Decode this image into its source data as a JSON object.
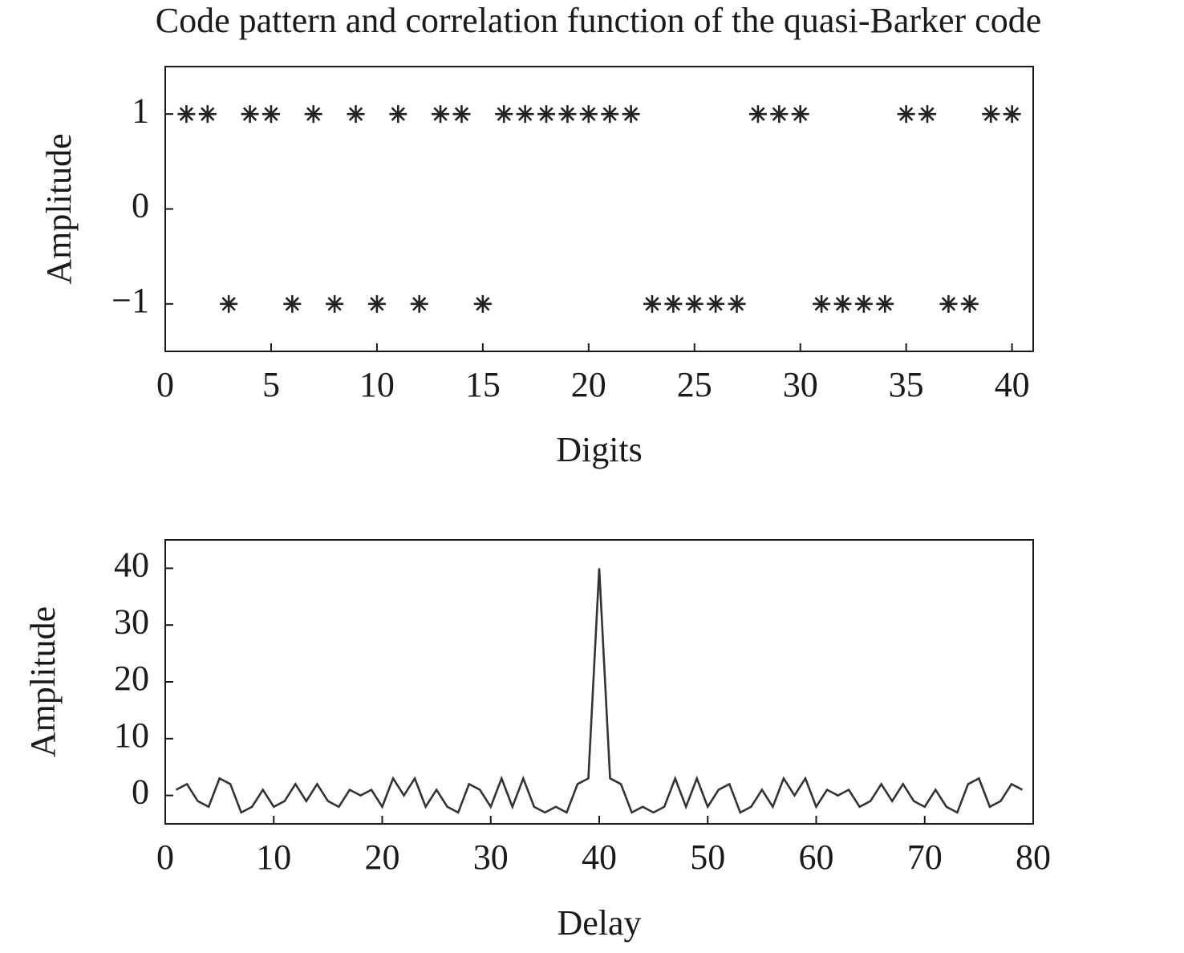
{
  "chart_data": [
    {
      "type": "scatter",
      "title": "Code pattern and correlation function of the quasi-Barker code",
      "xlabel": "Digits",
      "ylabel": "Amplitude",
      "marker": "asterisk",
      "color": "#222222",
      "x": [
        1,
        2,
        3,
        4,
        5,
        6,
        7,
        8,
        9,
        10,
        11,
        12,
        13,
        14,
        15,
        16,
        17,
        18,
        19,
        20,
        21,
        22,
        23,
        24,
        25,
        26,
        27,
        28,
        29,
        30,
        31,
        32,
        33,
        34,
        35,
        36,
        37,
        38,
        39,
        40
      ],
      "values": [
        1,
        1,
        -1,
        1,
        1,
        -1,
        1,
        -1,
        1,
        -1,
        1,
        -1,
        1,
        1,
        -1,
        1,
        1,
        1,
        1,
        1,
        1,
        1,
        -1,
        -1,
        -1,
        -1,
        -1,
        1,
        1,
        1,
        -1,
        -1,
        -1,
        -1,
        1,
        1,
        -1,
        -1,
        1,
        1
      ],
      "xlim": [
        0,
        41
      ],
      "ylim": [
        -1.5,
        1.5
      ],
      "xticks": [
        0,
        5,
        10,
        15,
        20,
        25,
        30,
        35,
        40
      ],
      "yticks": [
        {
          "value": -1,
          "label": "−1"
        },
        0,
        1
      ]
    },
    {
      "type": "line",
      "xlabel": "Delay",
      "ylabel": "Amplitude",
      "color": "#333333",
      "x": [
        1,
        2,
        3,
        4,
        5,
        6,
        7,
        8,
        9,
        10,
        11,
        12,
        13,
        14,
        15,
        16,
        17,
        18,
        19,
        20,
        21,
        22,
        23,
        24,
        25,
        26,
        27,
        28,
        29,
        30,
        31,
        32,
        33,
        34,
        35,
        36,
        37,
        38,
        39,
        40,
        41,
        42,
        43,
        44,
        45,
        46,
        47,
        48,
        49,
        50,
        51,
        52,
        53,
        54,
        55,
        56,
        57,
        58,
        59,
        60,
        61,
        62,
        63,
        64,
        65,
        66,
        67,
        68,
        69,
        70,
        71,
        72,
        73,
        74,
        75,
        76,
        77,
        78,
        79
      ],
      "values": [
        1,
        2,
        -1,
        -2,
        3,
        2,
        -3,
        -2,
        1,
        -2,
        -1,
        2,
        -1,
        2,
        -1,
        -2,
        1,
        0,
        1,
        -2,
        3,
        0,
        3,
        -2,
        1,
        -2,
        -3,
        2,
        1,
        -2,
        3,
        -2,
        3,
        -2,
        -3,
        -2,
        -3,
        2,
        3,
        40,
        3,
        2,
        -3,
        -2,
        -3,
        -2,
        3,
        -2,
        3,
        -2,
        1,
        2,
        -3,
        -2,
        1,
        -2,
        3,
        0,
        3,
        -2,
        1,
        0,
        1,
        -2,
        -1,
        2,
        -1,
        2,
        -1,
        -2,
        1,
        -2,
        -3,
        2,
        3,
        -2,
        -1,
        2,
        1
      ],
      "xlim": [
        0,
        80
      ],
      "ylim": [
        -5,
        45
      ],
      "xticks": [
        0,
        10,
        20,
        30,
        40,
        50,
        60,
        70,
        80
      ],
      "yticks": [
        0,
        10,
        20,
        30,
        40
      ]
    }
  ]
}
